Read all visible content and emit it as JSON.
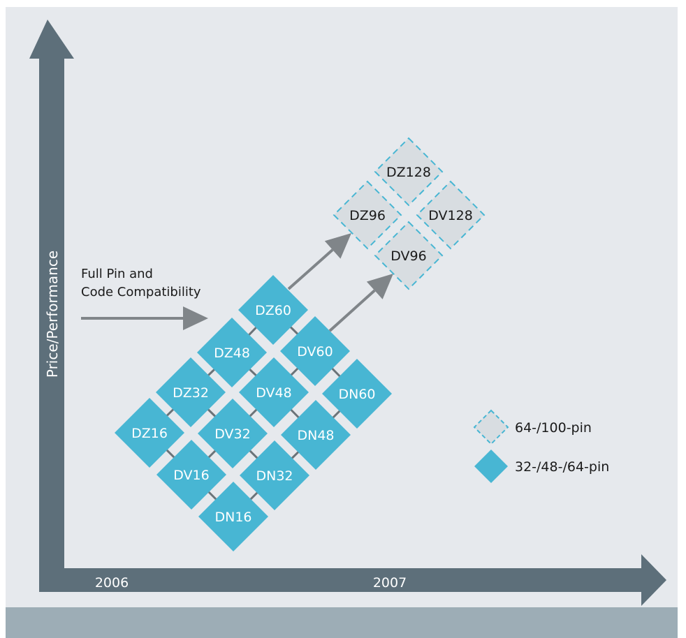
{
  "diagram": {
    "colors": {
      "background": "#e6e9ed",
      "bottom_band": "#9dadb6",
      "axis": "#5d6f7a",
      "axis_text": "#ffffff",
      "solid_tile": "#48b6d3",
      "solid_tile_text": "#ffffff",
      "connector": "#6b7378",
      "future_tile_fill": "#d8dde1",
      "future_tile_border": "#48b6d3",
      "future_tile_text": "#1a1a1a",
      "arrow": "#808589",
      "annotation_text": "#1a1a1a"
    },
    "y_axis_label": "Price/Performance",
    "x_axis_ticks": [
      "2006",
      "2007"
    ],
    "annotation": {
      "line1": "Full Pin and",
      "line2": "Code Compatibility"
    },
    "current_devices": [
      "DZ16",
      "DZ32",
      "DZ48",
      "DZ60",
      "DV16",
      "DV32",
      "DV48",
      "DV60",
      "DN16",
      "DN32",
      "DN48",
      "DN60"
    ],
    "future_devices": [
      "DZ128",
      "DZ96",
      "DV128",
      "DV96"
    ],
    "legend": [
      {
        "label": "64-/100-pin",
        "style": "dashed"
      },
      {
        "label": "32-/48-/64-pin",
        "style": "solid"
      }
    ]
  }
}
